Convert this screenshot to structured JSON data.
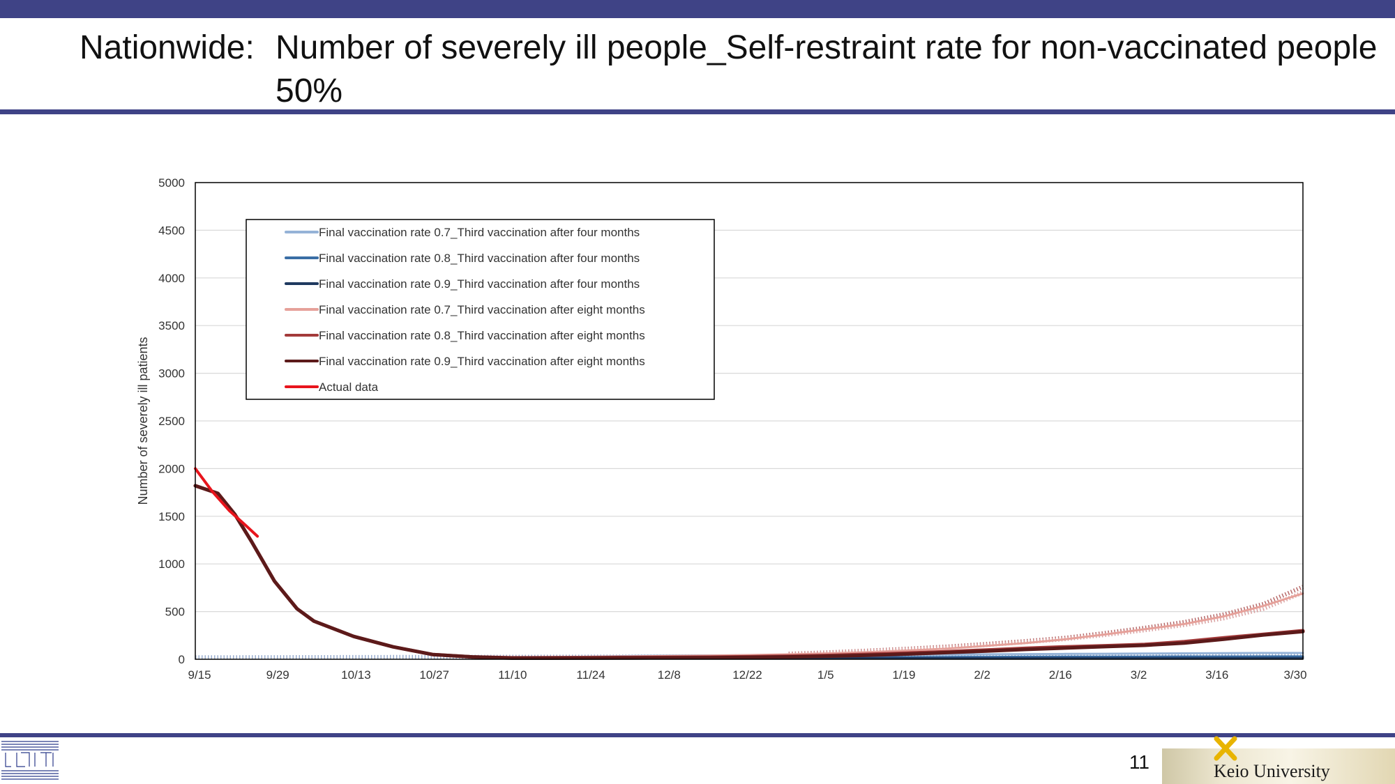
{
  "slide": {
    "title_prefix": "Nationwide:",
    "title_main": "Number of severely ill people_Self-restraint rate for non-vaccinated people 50%",
    "page_number": "11",
    "university": "Keio University",
    "colors": {
      "bar": "#3f4386"
    }
  },
  "chart_data": {
    "type": "line",
    "title": "",
    "xlabel": "",
    "ylabel": "Number of severely ill patients",
    "ylim": [
      0,
      5000
    ],
    "yticks": [
      0,
      500,
      1000,
      1500,
      2000,
      2500,
      3000,
      3500,
      4000,
      4500,
      5000
    ],
    "xticks": [
      "9/15",
      "9/29",
      "10/13",
      "10/27",
      "11/10",
      "11/24",
      "12/8",
      "12/22",
      "1/5",
      "1/19",
      "2/2",
      "2/16",
      "3/2",
      "3/16",
      "3/30"
    ],
    "x_range_days": [
      0,
      196
    ],
    "grid": "horizontal",
    "legend_position": "top-left",
    "series": [
      {
        "name": "Final vaccination rate 0.7_Third vaccination after four months",
        "color": "#95b3d7",
        "x": [
          0,
          4,
          7,
          10,
          14,
          18,
          21,
          28,
          35,
          42,
          49,
          56,
          63,
          70,
          77,
          84,
          91,
          98,
          105,
          112,
          119,
          126,
          133,
          140,
          147,
          154,
          161,
          168,
          175,
          182,
          189,
          196
        ],
        "y": [
          1820,
          1740,
          1520,
          1230,
          820,
          530,
          400,
          240,
          130,
          50,
          25,
          18,
          22,
          28,
          34,
          38,
          40,
          42,
          44,
          45,
          46,
          48,
          50,
          52,
          54,
          56,
          58,
          60,
          62,
          64,
          66,
          66
        ]
      },
      {
        "name": "Final vaccination rate 0.8_Third vaccination after four months",
        "color": "#3a6ea5",
        "x": [
          0,
          4,
          7,
          10,
          14,
          18,
          21,
          28,
          35,
          42,
          49,
          56,
          63,
          70,
          77,
          84,
          91,
          98,
          105,
          112,
          119,
          126,
          133,
          140,
          147,
          154,
          161,
          168,
          175,
          182,
          189,
          196
        ],
        "y": [
          1820,
          1740,
          1520,
          1230,
          820,
          530,
          400,
          240,
          130,
          50,
          25,
          15,
          15,
          16,
          17,
          18,
          18,
          19,
          20,
          21,
          22,
          23,
          24,
          25,
          26,
          27,
          28,
          28,
          29,
          29,
          30,
          30
        ]
      },
      {
        "name": "Final vaccination rate 0.9_Third vaccination after four months",
        "color": "#1f3a60",
        "x": [
          0,
          4,
          7,
          10,
          14,
          18,
          21,
          28,
          35,
          42,
          49,
          56,
          63,
          70,
          77,
          84,
          91,
          98,
          105,
          112,
          119,
          126,
          133,
          140,
          147,
          154,
          161,
          168,
          175,
          182,
          189,
          196
        ],
        "y": [
          1820,
          1740,
          1520,
          1230,
          820,
          530,
          400,
          240,
          130,
          50,
          25,
          12,
          10,
          10,
          10,
          10,
          10,
          10,
          11,
          11,
          11,
          12,
          12,
          12,
          12,
          13,
          13,
          13,
          13,
          13,
          13,
          13
        ]
      },
      {
        "name": "Final vaccination rate 0.7_Third vaccination after eight months",
        "color": "#e6a19a",
        "x": [
          0,
          4,
          7,
          10,
          14,
          18,
          21,
          28,
          35,
          42,
          49,
          56,
          63,
          70,
          77,
          84,
          91,
          98,
          105,
          112,
          119,
          126,
          133,
          140,
          147,
          154,
          161,
          168,
          175,
          182,
          189,
          196
        ],
        "y": [
          1820,
          1740,
          1520,
          1230,
          820,
          530,
          400,
          240,
          130,
          50,
          25,
          18,
          22,
          26,
          30,
          34,
          38,
          44,
          52,
          62,
          75,
          92,
          112,
          140,
          170,
          210,
          260,
          315,
          370,
          450,
          560,
          690
        ]
      },
      {
        "name": "Final vaccination rate 0.8_Third vaccination after eight months",
        "color": "#a33a3a",
        "x": [
          0,
          4,
          7,
          10,
          14,
          18,
          21,
          28,
          35,
          42,
          49,
          56,
          63,
          70,
          77,
          84,
          91,
          98,
          105,
          112,
          119,
          126,
          133,
          140,
          147,
          154,
          161,
          168,
          175,
          182,
          189,
          196
        ],
        "y": [
          1820,
          1740,
          1520,
          1230,
          820,
          530,
          400,
          240,
          130,
          50,
          25,
          15,
          16,
          17,
          18,
          20,
          22,
          26,
          32,
          40,
          52,
          65,
          80,
          97,
          115,
          130,
          142,
          155,
          185,
          225,
          262,
          300
        ]
      },
      {
        "name": "Final vaccination rate 0.9_Third vaccination after eight months",
        "color": "#5c1a1a",
        "x": [
          0,
          4,
          7,
          10,
          14,
          18,
          21,
          28,
          35,
          42,
          49,
          56,
          63,
          70,
          77,
          84,
          91,
          98,
          105,
          112,
          119,
          126,
          133,
          140,
          147,
          154,
          161,
          168,
          175,
          182,
          189,
          196
        ],
        "y": [
          1820,
          1740,
          1520,
          1230,
          820,
          530,
          400,
          240,
          130,
          50,
          25,
          12,
          12,
          13,
          14,
          15,
          17,
          20,
          25,
          32,
          42,
          55,
          70,
          86,
          103,
          118,
          132,
          146,
          170,
          210,
          255,
          290
        ]
      },
      {
        "name": "Actual data",
        "color": "#e8141c",
        "x": [
          0,
          3,
          6,
          9,
          11
        ],
        "y": [
          2000,
          1760,
          1560,
          1400,
          1290
        ]
      }
    ],
    "dotted_overlay": {
      "series": [
        {
          "color": "#b86a6a",
          "x": [
            105,
            112,
            119,
            126,
            133,
            140,
            147,
            154,
            161,
            168,
            175,
            182,
            189,
            196
          ],
          "y": [
            58,
            72,
            90,
            110,
            132,
            160,
            190,
            225,
            275,
            330,
            390,
            470,
            580,
            760
          ]
        },
        {
          "color": "#d9a0a0",
          "x": [
            105,
            112,
            119,
            126,
            133,
            140,
            147,
            154,
            161,
            168,
            175,
            182,
            189,
            196
          ],
          "y": [
            55,
            68,
            84,
            104,
            126,
            150,
            180,
            212,
            255,
            305,
            360,
            430,
            530,
            700
          ]
        },
        {
          "color": "#9aaecf",
          "x": [
            0,
            196
          ],
          "y": [
            20,
            40
          ]
        }
      ]
    }
  }
}
